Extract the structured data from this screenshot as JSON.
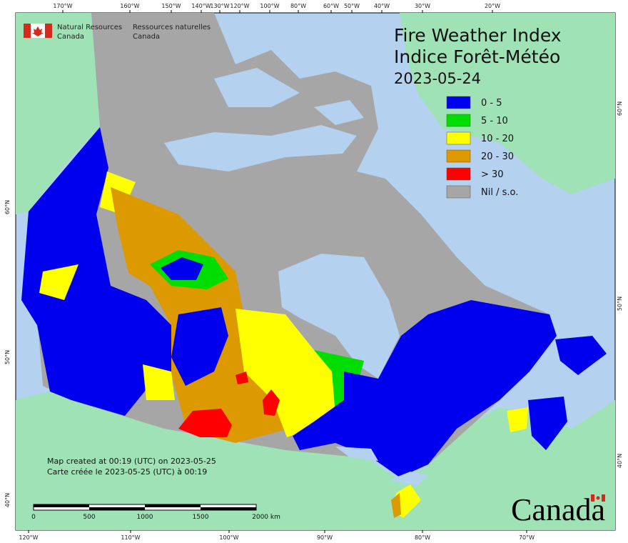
{
  "header": {
    "agency_en": "Natural Resources",
    "country_en": "Canada",
    "agency_fr": "Ressources naturelles",
    "country_fr": "Canada"
  },
  "title": {
    "en": "Fire Weather Index",
    "fr": "Indice Forêt-Météo",
    "date": "2023-05-24"
  },
  "legend": [
    {
      "label": "0 - 5",
      "color": "#0000ee"
    },
    {
      "label": "5 - 10",
      "color": "#00dd00"
    },
    {
      "label": "10 - 20",
      "color": "#ffff00"
    },
    {
      "label": "20 - 30",
      "color": "#dd9900"
    },
    {
      "label": "> 30",
      "color": "#ff0000"
    },
    {
      "label": "Nil / s.o.",
      "color": "#a6a6a6"
    }
  ],
  "credits": {
    "en": "Map created at 00:19 (UTC) on 2023-05-25",
    "fr": "Carte créée le 2023-05-25 (UTC) à 00:19"
  },
  "scale_bar": [
    "0",
    "500",
    "1000",
    "1500",
    "2000 km"
  ],
  "wordmark": "Canada",
  "top_labels": [
    "170°W",
    "160°W",
    "150°W",
    "140°W",
    "130°W",
    "120°W",
    "100°W",
    "80°W",
    "60°W",
    "50°W",
    "40°W",
    "30°W",
    "20°W"
  ],
  "bottom_labels": [
    "120°W",
    "110°W",
    "100°W",
    "90°W",
    "80°W",
    "70°W"
  ],
  "left_labels": [
    "60°N",
    "50°N",
    "40°N"
  ],
  "right_labels": [
    "60°N",
    "50°N",
    "40°N"
  ]
}
